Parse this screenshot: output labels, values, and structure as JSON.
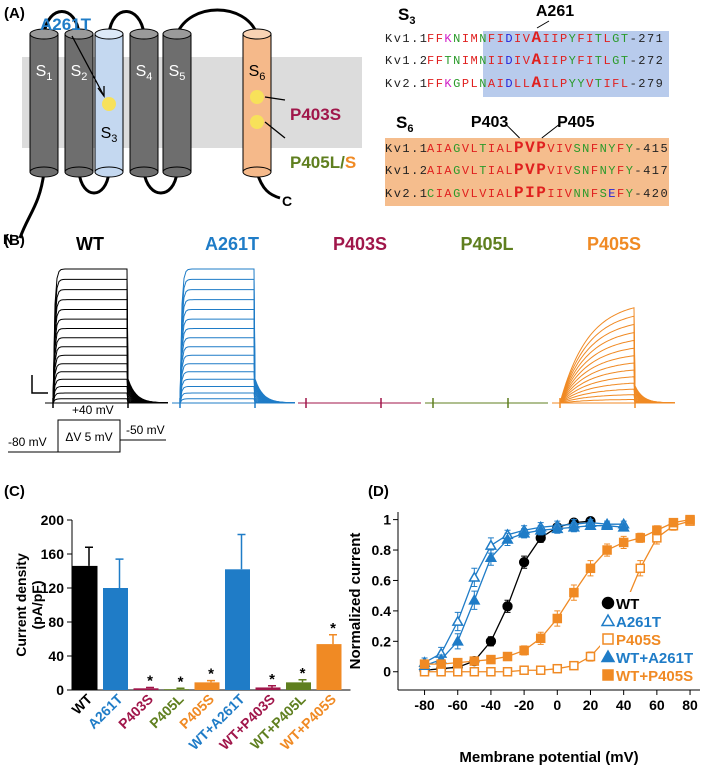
{
  "panel_a": {
    "label": "(A)",
    "segments": [
      {
        "main": "S",
        "sub": "1"
      },
      {
        "main": "S",
        "sub": "2"
      },
      {
        "main": "S",
        "sub": "3"
      },
      {
        "main": "S",
        "sub": "4"
      },
      {
        "main": "S",
        "sub": "5"
      },
      {
        "main": "S",
        "sub": "6"
      }
    ],
    "mutations": {
      "a261t": "A261T",
      "p403s": "P403S",
      "p405l": "P405L/",
      "p405s": "S"
    },
    "termini": {
      "n": "N",
      "c": "C"
    },
    "alignments": [
      {
        "segment": {
          "main": "S",
          "sub": "3"
        },
        "sites": [
          "A261"
        ],
        "rows": [
          {
            "name": "Kv1.1",
            "pre": "FFKNIMNFIDIV",
            "mark": "A",
            "post": "IIPYFITLGT",
            "end": "-271"
          },
          {
            "name": "Kv1.2",
            "pre": "FFTNIMNIIDIV",
            "mark": "A",
            "post": "IIPYFITLGT",
            "end": "-272"
          },
          {
            "name": "Kv2.1",
            "pre": "FFKGPLNAIDLL",
            "mark": "A",
            "post": "ILPYYVTIFL",
            "end": "-279"
          }
        ]
      },
      {
        "segment": {
          "main": "S",
          "sub": "6"
        },
        "sites": [
          "P403",
          "P405"
        ],
        "rows": [
          {
            "name": "Kv1.1",
            "pre": "AIAGVLTIAL",
            "mark": "PVP",
            "post": "VIVSNFNYFY",
            "end": "-415"
          },
          {
            "name": "Kv1.2",
            "pre": "AIAGVLTIAL",
            "mark": "PVP",
            "post": "VIVSNFNYFY",
            "end": "-417"
          },
          {
            "name": "Kv2.1",
            "pre": "CIAGVLVIAL",
            "mark": "PIP",
            "post": "IIVNNFSEFY",
            "end": "-420"
          }
        ]
      }
    ]
  },
  "panel_b": {
    "label": "(B)",
    "traces": [
      {
        "name": "WT",
        "color": "#000000"
      },
      {
        "name": "A261T",
        "color": "#1f7cc7"
      },
      {
        "name": "P403S",
        "color": "#a0164a"
      },
      {
        "name": "P405L",
        "color": "#5f7f1f"
      },
      {
        "name": "P405S",
        "color": "#f08a24"
      }
    ],
    "protocol": {
      "hold": "-80 mV",
      "step": "+40 mV",
      "increment": "ΔV 5 mV",
      "tail": "-50 mV"
    }
  },
  "chart_data": [
    {
      "type": "bar",
      "label": "(C)",
      "ylabel": [
        "Current density",
        "(pA/pF)"
      ],
      "categories": [
        "WT",
        "A261T",
        "P403S",
        "P405L",
        "P405S",
        "WT+A261T",
        "WT+P403S",
        "WT+P405L",
        "WT+P405S"
      ],
      "values": [
        146,
        120,
        2,
        1,
        9,
        142,
        3,
        9,
        54
      ],
      "errors": [
        22,
        34,
        1,
        1,
        2,
        41,
        2,
        3,
        11
      ],
      "colors": [
        "#000000",
        "#1f7cc7",
        "#a0164a",
        "#5f7f1f",
        "#f08a24",
        "#1f7cc7",
        "#a0164a",
        "#5f7f1f",
        "#f08a24"
      ],
      "markers": [
        null,
        null,
        "*",
        "*",
        "*",
        null,
        "*",
        "*",
        "*"
      ],
      "ylim": [
        0,
        200
      ],
      "yticks": [
        0,
        40,
        80,
        120,
        160,
        200
      ]
    },
    {
      "type": "line",
      "label": "(D)",
      "xlabel": "Membrane potential (mV)",
      "ylabel": "Normalized current",
      "xlim": [
        -96,
        86
      ],
      "xticks": [
        -80,
        -60,
        -40,
        -20,
        0,
        20,
        40,
        60,
        80
      ],
      "ylim": [
        -0.12,
        1.05
      ],
      "yticks": [
        0,
        0.2,
        0.4,
        0.6,
        0.8,
        1
      ],
      "legend": "lower right",
      "series": [
        {
          "name": "WT",
          "color": "#000000",
          "marker": "circle",
          "filled": true,
          "x": [
            -80,
            -70,
            -60,
            -50,
            -40,
            -30,
            -20,
            -10,
            0,
            10,
            20
          ],
          "values": [
            0.01,
            0.02,
            0.03,
            0.07,
            0.2,
            0.43,
            0.72,
            0.88,
            0.95,
            0.98,
            0.99
          ],
          "errors": [
            0.01,
            0.01,
            0.02,
            0.02,
            0.03,
            0.04,
            0.04,
            0.03,
            0.02,
            0.01,
            0.01
          ]
        },
        {
          "name": "A261T",
          "color": "#1f7cc7",
          "marker": "triangle",
          "filled": false,
          "x": [
            -80,
            -70,
            -60,
            -50,
            -40,
            -30,
            -20,
            -10,
            0,
            10,
            20,
            30,
            40
          ],
          "values": [
            0.06,
            0.12,
            0.33,
            0.62,
            0.83,
            0.9,
            0.93,
            0.95,
            0.96,
            0.97,
            0.98,
            0.97,
            0.97
          ],
          "errors": [
            0.03,
            0.04,
            0.06,
            0.06,
            0.05,
            0.03,
            0.03,
            0.03,
            0.03,
            0.03,
            0.02,
            0.02,
            0.02
          ]
        },
        {
          "name": "P405S",
          "color": "#f08a24",
          "marker": "square",
          "filled": false,
          "x": [
            -80,
            -70,
            -60,
            -50,
            -40,
            -30,
            -20,
            -10,
            0,
            10,
            20,
            30,
            40,
            50,
            60,
            70,
            80
          ],
          "values": [
            0,
            0,
            0,
            0,
            0,
            0,
            0.01,
            0.01,
            0.02,
            0.04,
            0.1,
            0.22,
            0.42,
            0.68,
            0.88,
            0.96,
            0.99
          ],
          "errors": [
            0.01,
            0.01,
            0.01,
            0.01,
            0.01,
            0.01,
            0.01,
            0.01,
            0.01,
            0.02,
            0.03,
            0.04,
            0.05,
            0.05,
            0.04,
            0.03,
            0.02
          ]
        },
        {
          "name": "WT+A261T",
          "color": "#1f7cc7",
          "marker": "triangle",
          "filled": true,
          "x": [
            -80,
            -70,
            -60,
            -50,
            -40,
            -30,
            -20,
            -10,
            0,
            10,
            20,
            30,
            40
          ],
          "values": [
            0.04,
            0.08,
            0.2,
            0.47,
            0.75,
            0.87,
            0.91,
            0.93,
            0.94,
            0.95,
            0.96,
            0.96,
            0.95
          ],
          "errors": [
            0.02,
            0.03,
            0.05,
            0.06,
            0.05,
            0.04,
            0.03,
            0.03,
            0.03,
            0.03,
            0.02,
            0.02,
            0.02
          ]
        },
        {
          "name": "WT+P405S",
          "color": "#f08a24",
          "marker": "square",
          "filled": true,
          "x": [
            -80,
            -70,
            -60,
            -50,
            -40,
            -30,
            -20,
            -10,
            0,
            10,
            20,
            30,
            40,
            50,
            60,
            70,
            80
          ],
          "values": [
            0.05,
            0.05,
            0.06,
            0.07,
            0.08,
            0.1,
            0.14,
            0.22,
            0.35,
            0.52,
            0.68,
            0.8,
            0.85,
            0.88,
            0.93,
            0.98,
            1
          ],
          "errors": [
            0.02,
            0.02,
            0.02,
            0.02,
            0.02,
            0.02,
            0.03,
            0.04,
            0.05,
            0.05,
            0.05,
            0.04,
            0.04,
            0.03,
            0.03,
            0.02,
            0.02
          ]
        }
      ]
    }
  ]
}
